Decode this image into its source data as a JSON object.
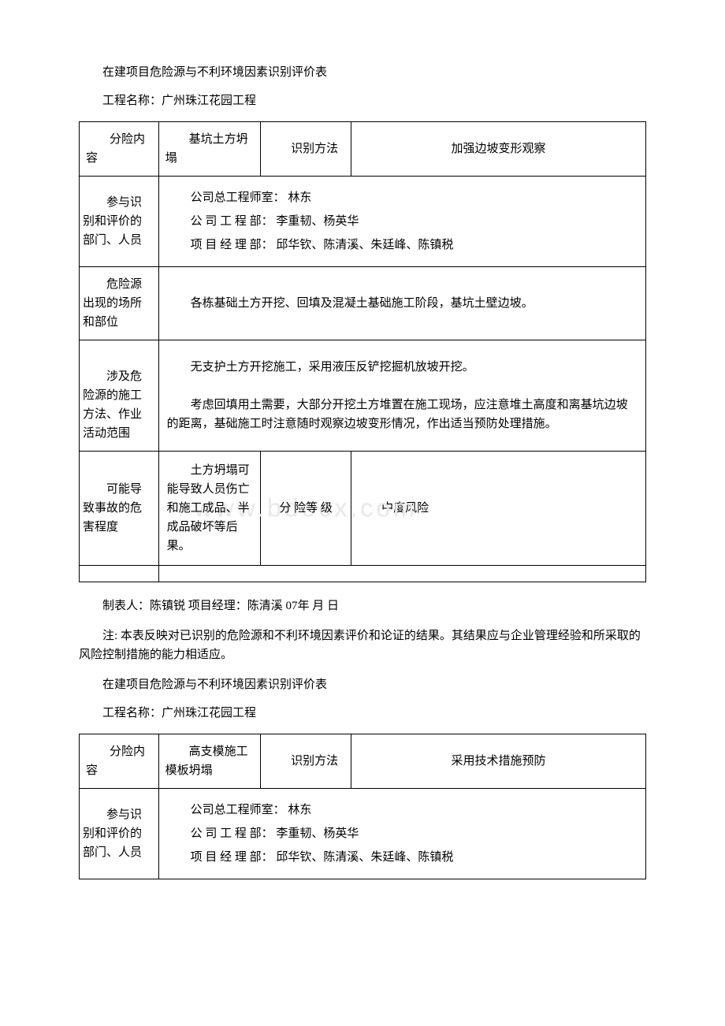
{
  "section1": {
    "title": "在建项目危险源与不利环境因素识别评价表",
    "project_label": "工程名称：",
    "project_name": "广州珠江花园工程",
    "row1": {
      "label": "分险内容",
      "hazard": "基坑土方坍塌",
      "method_label": "识别方法",
      "method_value": "加强边坡变形观察"
    },
    "participants": {
      "label": "参与识别和评价的部门、人员",
      "line1": "公司总工程师室： 林东",
      "line2": "公 司 工 程 部： 李重韧、杨英华",
      "line3": "项 目 经 理 部： 邱华钦、陈清溪、朱廷峰、陈镇税"
    },
    "location": {
      "label": "危险源出现的场所和部位",
      "content": "各栋基础土方开挖、回填及混凝土基础施工阶段，基坑土壁边坡。"
    },
    "methods": {
      "label": "涉及危险源的施工方法、作业活动范围",
      "line1": "无支护土方开挖施工，采用液压反铲挖掘机放坡开挖。",
      "line2": "考虑回填用土需要，大部分开挖土方堆置在施工现场，应注意堆土高度和离基坑边坡的距离，基础施工时注意随时观察边坡变形情况，作出适当预防处理措施。"
    },
    "harm": {
      "label": "可能导致事故的危害程度",
      "content": "土方坍塌可能导致人员伤亡和施工成品、半成品破坏等后果。",
      "level_label": "分 险等 级",
      "level_value": "中度风险"
    },
    "footer": "制表人：陈镇锐  项目经理：陈清溪 07年 月 日",
    "note": "注: 本表反映对已识别的危险源和不利环境因素评价和论证的结果。其结果应与企业管理经验和所采取的风险控制措施的能力相适应。"
  },
  "section2": {
    "title": "在建项目危险源与不利环境因素识别评价表",
    "project_label": "工程名称：",
    "project_name": "广州珠江花园工程",
    "row1": {
      "label": "分险内容",
      "hazard": "高支模施工模板坍塌",
      "method_label": "识别方法",
      "method_value": "采用技术措施预防"
    },
    "participants": {
      "label": "参与识别和评价的部门、人员",
      "line1": "公司总工程师室： 林东",
      "line2": "公 司 工 程 部： 李重韧、杨英华",
      "line3": "项 目 经 理 部： 邱华钦、陈清溪、朱廷峰、陈镇税"
    }
  },
  "watermark": "www.bdocx.com"
}
